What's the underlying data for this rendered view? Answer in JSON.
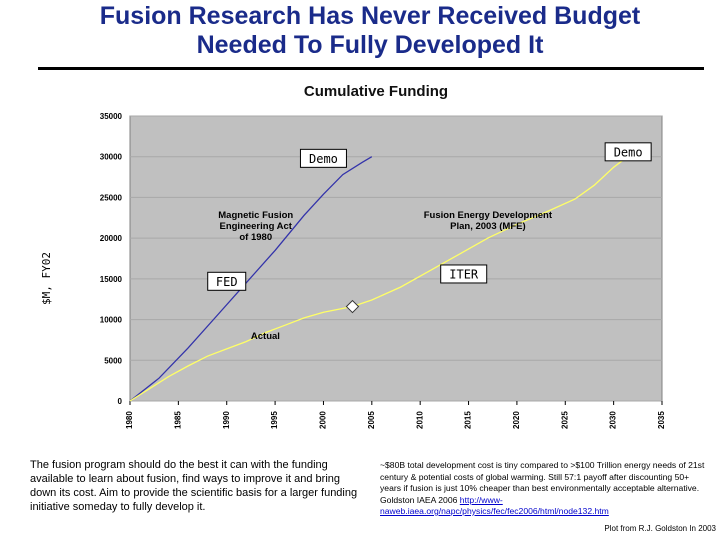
{
  "page": {
    "title_line1": "Fusion Research Has Never Received Budget",
    "title_line2": "Needed To Fully Developed It",
    "left_text": "The fusion program should do the best it can with the funding available to learn about fusion, find ways to improve it and bring down its cost.  Aim to provide the scientific basis for a larger funding initiative someday to fully develop it.",
    "right_text": "~$80B total development cost is tiny compared to >$100 Trillion energy needs of 21st century & potential costs of global warming.  Still 57:1 payoff after discounting 50+ years if fusion is just 10% cheaper than best environmentally acceptable alternative.  Goldston IAEA 2006 ",
    "right_link": "http://www-naweb.iaea.org/napc/physics/fec/fec2006/html/node132.htm",
    "credit": "Plot from R.J. Goldston In 2003"
  },
  "chart_data": {
    "type": "line",
    "title": "Cumulative Funding",
    "xlabel": "",
    "ylabel": "$M, FY02",
    "xlim": [
      1980,
      2035
    ],
    "ylim": [
      0,
      35000
    ],
    "x_ticks": [
      1980,
      1985,
      1990,
      1995,
      2000,
      2005,
      2010,
      2015,
      2020,
      2025,
      2030,
      2035
    ],
    "y_ticks": [
      0,
      5000,
      10000,
      15000,
      20000,
      25000,
      30000,
      35000
    ],
    "grid": "horizontal",
    "colors": {
      "plot_bg": "#c0c0c0",
      "mfe_act": "#3333aa",
      "actual": "#ffff66",
      "plan": "#ffff66"
    },
    "series": [
      {
        "name": "Magnetic Fusion Engineering Act of 1980",
        "color": "#3333aa",
        "x": [
          1980,
          1983,
          1986,
          1989,
          1992,
          1995,
          1998,
          2000,
          2002,
          2004,
          2005
        ],
        "y": [
          0,
          2800,
          6500,
          10500,
          14500,
          18500,
          22800,
          25400,
          27800,
          29300,
          30000
        ]
      },
      {
        "name": "Actual",
        "color": "#ffff66",
        "x": [
          1980,
          1982,
          1984,
          1986,
          1988,
          1990,
          1992,
          1994,
          1996,
          1998,
          2000,
          2003
        ],
        "y": [
          0,
          1500,
          3000,
          4300,
          5500,
          6400,
          7300,
          8400,
          9300,
          10200,
          10900,
          11600
        ]
      },
      {
        "name": "Fusion Energy Development Plan, 2003 (MFE)",
        "color": "#ffff66",
        "x": [
          2003,
          2005,
          2008,
          2011,
          2014,
          2017,
          2020,
          2023,
          2026,
          2028,
          2030,
          2032,
          2033
        ],
        "y": [
          11600,
          12400,
          14000,
          16000,
          18000,
          20000,
          21700,
          23200,
          24800,
          26500,
          28700,
          30500,
          31000
        ]
      }
    ],
    "annotations": [
      {
        "text": "Magnetic Fusion\nEngineering Act\nof 1980",
        "x": 1993,
        "y": 22500
      },
      {
        "text": "Fusion Energy Development\nPlan, 2003 (MFE)",
        "x": 2017,
        "y": 22500
      },
      {
        "text": "Actual",
        "x": 1994,
        "y": 7600
      }
    ],
    "boxed_labels": [
      {
        "text": "Demo",
        "x": 2000,
        "y": 29800
      },
      {
        "text": "Demo",
        "x": 2031.5,
        "y": 30600
      },
      {
        "text": "FED",
        "x": 1990,
        "y": 14700
      },
      {
        "text": "ITER",
        "x": 2014.5,
        "y": 15600
      }
    ],
    "marker": {
      "x": 2003,
      "y": 11600,
      "shape": "diamond"
    }
  }
}
